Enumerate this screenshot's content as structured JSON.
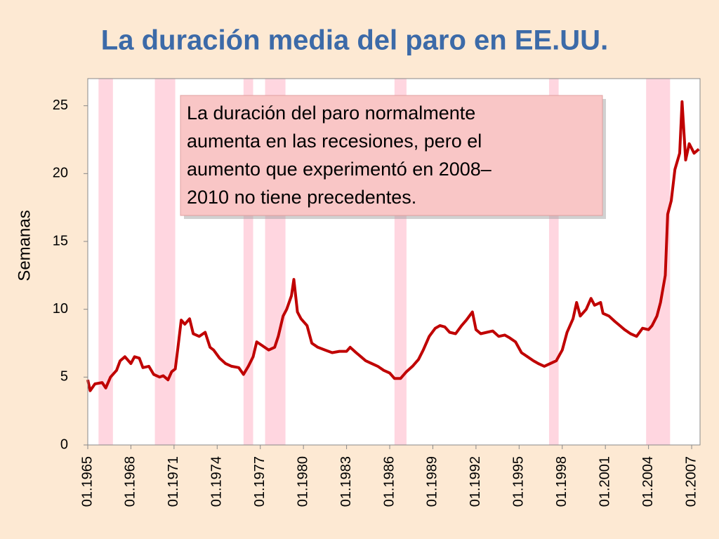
{
  "chart_data": {
    "type": "line",
    "title": "La duración media del paro en EE.UU.",
    "ylabel": "Semanas",
    "annotation": [
      "La duración del paro normalmente",
      "aumenta en las recesiones, pero el",
      "aumento que experimentó en 2008–",
      "2010 no tiene precedentes."
    ],
    "xlim": [
      "01.1965",
      "08.2007"
    ],
    "xticks": [
      "01.1965",
      "01.1968",
      "01.1971",
      "01.1974",
      "01.1977",
      "01.1980",
      "01.1983",
      "01.1986",
      "01.1989",
      "01.1992",
      "01.1995",
      "01.1998",
      "01.2001",
      "01.2004",
      "01.2007"
    ],
    "ylim": [
      0,
      27
    ],
    "yticks": [
      0,
      5,
      10,
      15,
      20,
      25
    ],
    "shading_color": "#ffd6e0",
    "shading": [
      [
        "10.1965",
        "10.1966"
      ],
      [
        "09.1969",
        "02.1971"
      ],
      [
        "11.1975",
        "07.1976"
      ],
      [
        "05.1977",
        "10.1978"
      ],
      [
        "05.1986",
        "03.1987"
      ],
      [
        "02.1997",
        "10.1997"
      ],
      [
        "11.2003",
        "07.2005"
      ]
    ],
    "series": [
      {
        "name": "Semanas",
        "color": "#c00000",
        "x": [
          "01.1965",
          "03.1965",
          "07.1965",
          "01.1966",
          "04.1966",
          "08.1966",
          "01.1967",
          "04.1967",
          "08.1967",
          "01.1968",
          "04.1968",
          "08.1968",
          "11.1968",
          "04.1969",
          "08.1969",
          "01.1970",
          "04.1970",
          "08.1970",
          "11.1970",
          "02.1971",
          "04.1971",
          "07.1971",
          "10.1971",
          "02.1972",
          "05.1972",
          "10.1972",
          "03.1973",
          "07.1973",
          "10.1973",
          "03.1974",
          "08.1974",
          "01.1975",
          "07.1975",
          "11.1975",
          "03.1976",
          "07.1976",
          "10.1976",
          "03.1977",
          "08.1977",
          "01.1978",
          "04.1978",
          "08.1978",
          "11.1978",
          "03.1979",
          "05.1979",
          "08.1979",
          "11.1979",
          "04.1980",
          "08.1980",
          "01.1981",
          "07.1981",
          "01.1982",
          "07.1982",
          "01.1983",
          "04.1983",
          "09.1983",
          "01.1984",
          "05.1984",
          "10.1984",
          "03.1985",
          "08.1985",
          "01.1986",
          "05.1986",
          "10.1986",
          "03.1987",
          "08.1987",
          "01.1988",
          "05.1988",
          "10.1988",
          "03.1989",
          "07.1989",
          "11.1989",
          "03.1990",
          "08.1990",
          "01.1991",
          "05.1991",
          "10.1991",
          "01.1992",
          "05.1992",
          "10.1992",
          "03.1993",
          "08.1993",
          "01.1994",
          "05.1994",
          "10.1994",
          "03.1995",
          "08.1995",
          "01.1996",
          "05.1996",
          "10.1996",
          "03.1997",
          "08.1997",
          "01.1998",
          "05.1998",
          "10.1998",
          "01.1999",
          "04.1999",
          "09.1999",
          "01.2000",
          "04.2000",
          "09.2000",
          "11.2000",
          "04.2001",
          "09.2001",
          "01.2002",
          "05.2002",
          "10.2002",
          "03.2003",
          "08.2003",
          "01.2004",
          "04.2004",
          "08.2004",
          "11.2004",
          "03.2005",
          "05.2005",
          "08.2005",
          "11.2005",
          "03.2006",
          "05.2006",
          "08.2006",
          "11.2006",
          "03.2007",
          "07.2007"
        ],
        "values": [
          4.8,
          4.0,
          4.5,
          4.6,
          4.2,
          5.0,
          5.5,
          6.2,
          6.5,
          6.0,
          6.5,
          6.4,
          5.7,
          5.8,
          5.2,
          5.0,
          5.1,
          4.8,
          5.4,
          5.6,
          7.0,
          9.2,
          8.9,
          9.3,
          8.2,
          8.0,
          8.3,
          7.2,
          7.0,
          6.4,
          6.0,
          5.8,
          5.7,
          5.2,
          5.8,
          6.5,
          7.6,
          7.3,
          7.0,
          7.2,
          8.0,
          9.5,
          10.0,
          11.0,
          12.2,
          9.8,
          9.3,
          8.8,
          7.5,
          7.2,
          7.0,
          6.8,
          6.9,
          6.9,
          7.2,
          6.8,
          6.5,
          6.2,
          6.0,
          5.8,
          5.5,
          5.3,
          4.9,
          4.9,
          5.4,
          5.8,
          6.3,
          7.0,
          8.0,
          8.6,
          8.8,
          8.7,
          8.3,
          8.2,
          8.8,
          9.2,
          9.8,
          8.5,
          8.2,
          8.3,
          8.4,
          8.0,
          8.1,
          7.9,
          7.6,
          6.8,
          6.5,
          6.2,
          6.0,
          5.8,
          6.0,
          6.2,
          7.0,
          8.3,
          9.3,
          10.5,
          9.5,
          10.0,
          10.8,
          10.3,
          10.5,
          9.7,
          9.5,
          9.1,
          8.8,
          8.5,
          8.2,
          8.0,
          8.6,
          8.5,
          8.8,
          9.5,
          10.5,
          12.5,
          17.0,
          18.0,
          20.3,
          21.5,
          25.3,
          21.0,
          22.2,
          21.5,
          21.8
        ]
      }
    ]
  }
}
